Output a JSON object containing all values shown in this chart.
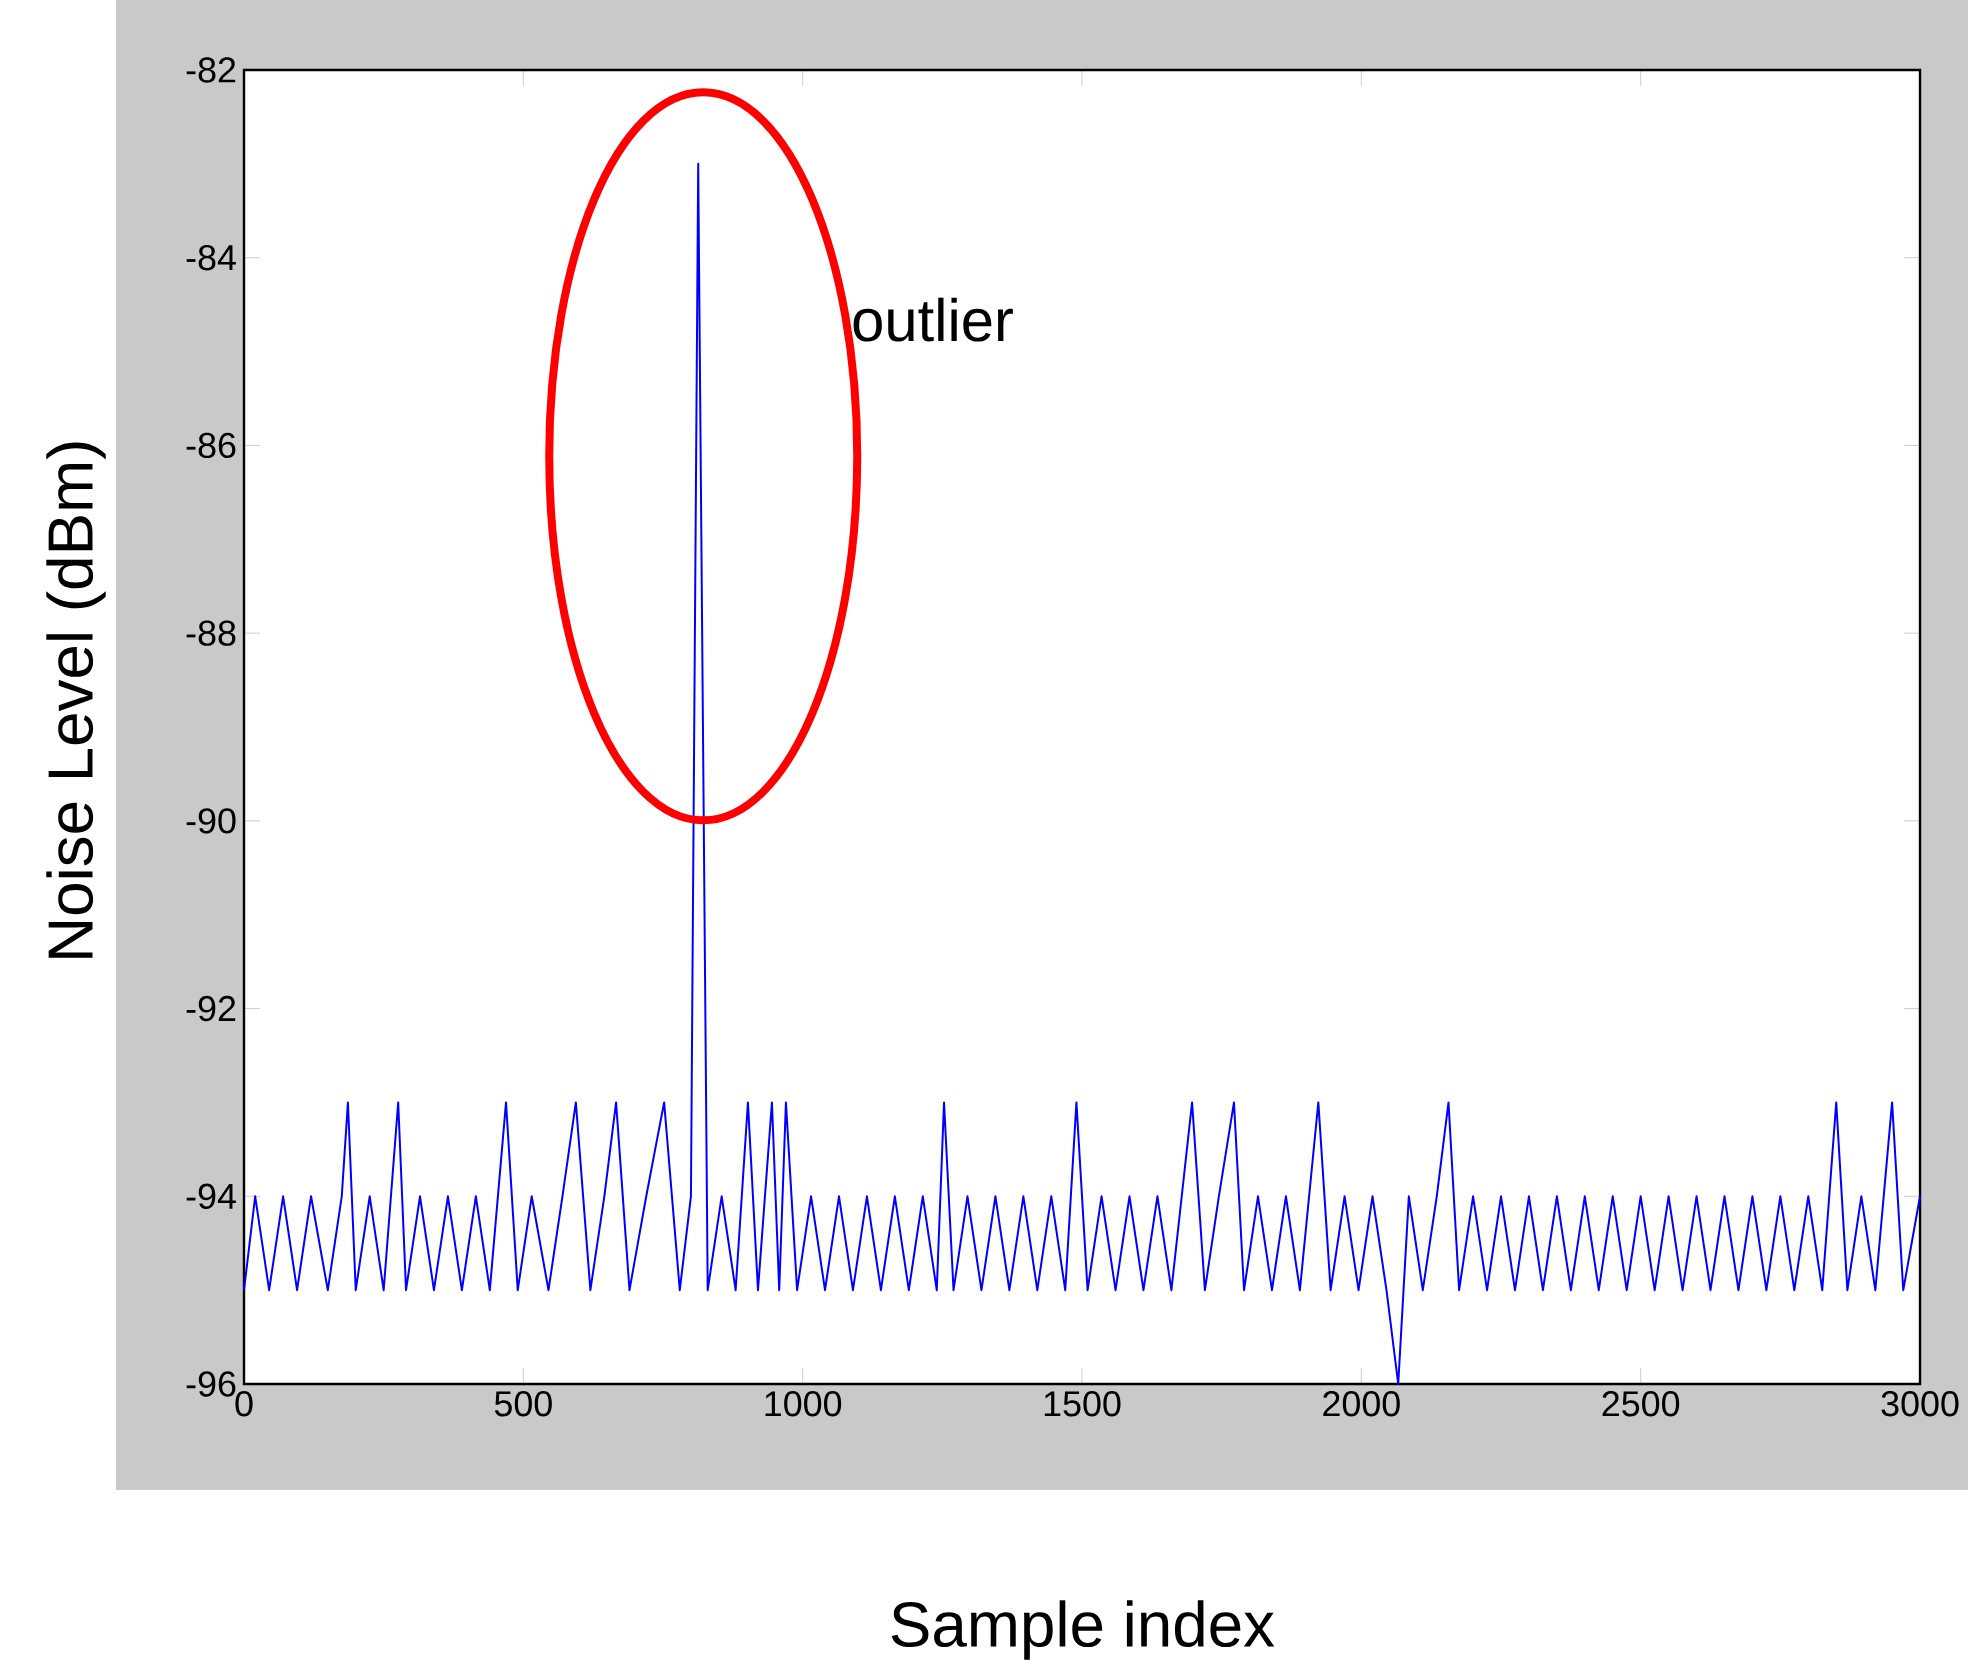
{
  "chart_data": {
    "type": "line",
    "xlabel": "Sample index",
    "ylabel": "Noise Level (dBm)",
    "xlim": [
      0,
      3000
    ],
    "ylim": [
      -96,
      -82
    ],
    "xticks": [
      0,
      500,
      1000,
      1500,
      2000,
      2500,
      3000
    ],
    "yticks": [
      -96,
      -94,
      -92,
      -90,
      -88,
      -86,
      -84,
      -82
    ],
    "annotations": [
      "outlier"
    ],
    "series": [
      {
        "color": "#0000ff",
        "x": [
          0,
          20,
          45,
          70,
          95,
          120,
          150,
          175,
          186,
          200,
          225,
          250,
          276,
          290,
          315,
          340,
          365,
          390,
          415,
          440,
          469,
          490,
          515,
          545,
          570,
          594,
          620,
          645,
          666,
          690,
          720,
          752,
          780,
          800,
          813,
          830,
          855,
          880,
          902,
          920,
          945,
          958,
          970,
          990,
          1015,
          1040,
          1065,
          1090,
          1115,
          1140,
          1165,
          1190,
          1215,
          1240,
          1253,
          1270,
          1295,
          1320,
          1345,
          1370,
          1395,
          1420,
          1445,
          1470,
          1490,
          1510,
          1535,
          1560,
          1585,
          1610,
          1635,
          1660,
          1697,
          1720,
          1745,
          1772,
          1790,
          1815,
          1840,
          1865,
          1890,
          1923,
          1945,
          1970,
          1995,
          2020,
          2045,
          2066,
          2085,
          2110,
          2135,
          2156,
          2175,
          2200,
          2225,
          2250,
          2275,
          2300,
          2325,
          2350,
          2375,
          2400,
          2425,
          2450,
          2475,
          2500,
          2525,
          2550,
          2575,
          2600,
          2625,
          2650,
          2675,
          2700,
          2725,
          2750,
          2775,
          2800,
          2825,
          2850,
          2870,
          2895,
          2920,
          2950,
          2970,
          3000
        ],
        "values": [
          -95,
          -94,
          -95,
          -94,
          -95,
          -94,
          -95,
          -94,
          -93,
          -95,
          -94,
          -95,
          -93,
          -95,
          -94,
          -95,
          -94,
          -95,
          -94,
          -95,
          -93,
          -95,
          -94,
          -95,
          -94,
          -93,
          -95,
          -94,
          -93,
          -95,
          -94,
          -93,
          -95,
          -94,
          -83,
          -95,
          -94,
          -95,
          -93,
          -95,
          -93,
          -95,
          -93,
          -95,
          -94,
          -95,
          -94,
          -95,
          -94,
          -95,
          -94,
          -95,
          -94,
          -95,
          -93,
          -95,
          -94,
          -95,
          -94,
          -95,
          -94,
          -95,
          -94,
          -95,
          -93,
          -95,
          -94,
          -95,
          -94,
          -95,
          -94,
          -95,
          -93,
          -95,
          -94,
          -93,
          -95,
          -94,
          -95,
          -94,
          -95,
          -93,
          -95,
          -94,
          -95,
          -94,
          -95,
          -96,
          -94,
          -95,
          -94,
          -93,
          -95,
          -94,
          -95,
          -94,
          -95,
          -94,
          -95,
          -94,
          -95,
          -94,
          -95,
          -94,
          -95,
          -94,
          -95,
          -94,
          -95,
          -94,
          -95,
          -94,
          -95,
          -94,
          -95,
          -94,
          -95,
          -94,
          -95,
          -93,
          -95,
          -94,
          -95,
          -93,
          -95,
          -94
        ]
      }
    ]
  }
}
